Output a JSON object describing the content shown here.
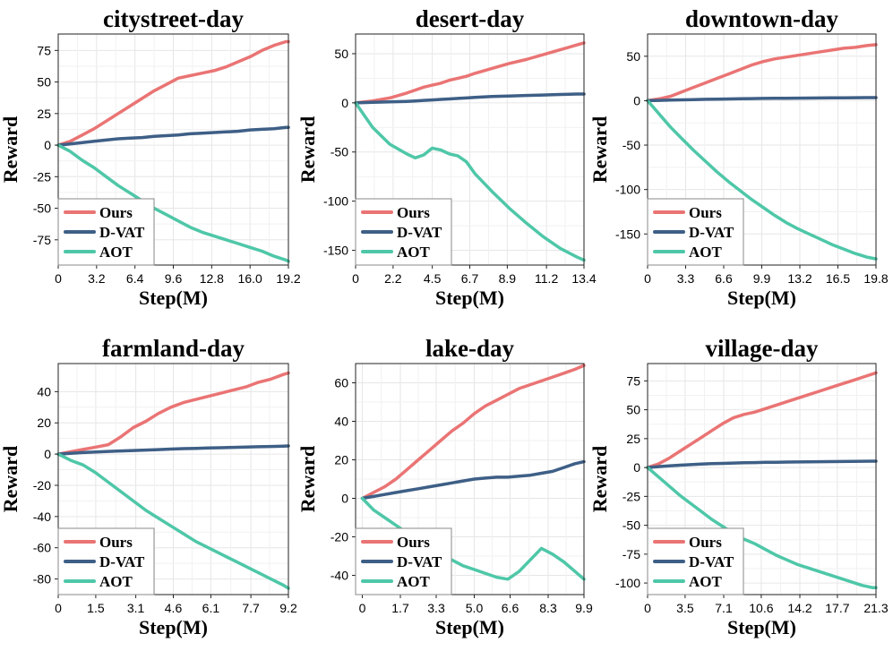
{
  "colors": {
    "ours": "#ea7474",
    "dvat": "#3e5f86",
    "aot": "#4ec7a8"
  },
  "legend": [
    "Ours",
    "D-VAT",
    "AOT"
  ],
  "chart_data": [
    {
      "type": "line",
      "title": "citystreet-day",
      "xlabel": "Step(M)",
      "ylabel": "Reward",
      "xlim": [
        0,
        19.2
      ],
      "ylim": [
        -95,
        88
      ],
      "xticks": [
        "0",
        "3.2",
        "6.4",
        "9.6",
        "12.8",
        "16.0",
        "19.2"
      ],
      "yticks": [
        "75",
        "50",
        "25",
        "0",
        "-25",
        "-50",
        "-75"
      ],
      "legend_position": "lower-left",
      "x": [
        0,
        1,
        2,
        3,
        4,
        5,
        6,
        7,
        8,
        9,
        10,
        11,
        12,
        13,
        14,
        15,
        16,
        17,
        18,
        19,
        19.2
      ],
      "series": [
        {
          "name": "Ours",
          "values": [
            0,
            3,
            8,
            13,
            19,
            25,
            31,
            37,
            43,
            48,
            53,
            55,
            57,
            59,
            62,
            66,
            70,
            75,
            79,
            82,
            82
          ]
        },
        {
          "name": "D-VAT",
          "values": [
            0,
            1,
            2,
            3,
            4,
            5,
            5.5,
            6,
            7,
            7.5,
            8,
            9,
            9.5,
            10,
            10.5,
            11,
            12,
            12.5,
            13,
            14,
            14
          ]
        },
        {
          "name": "AOT",
          "values": [
            0,
            -5,
            -12,
            -18,
            -25,
            -32,
            -38,
            -44,
            -50,
            -55,
            -60,
            -65,
            -69,
            -72,
            -75,
            -78,
            -81,
            -84,
            -88,
            -91,
            -92
          ]
        }
      ]
    },
    {
      "type": "line",
      "title": "desert-day",
      "xlabel": "Step(M)",
      "ylabel": "Reward",
      "xlim": [
        0,
        13.4
      ],
      "ylim": [
        -165,
        70
      ],
      "xticks": [
        "0",
        "2.2",
        "4.5",
        "6.7",
        "8.9",
        "11.2",
        "13.4"
      ],
      "yticks": [
        "50",
        "0",
        "-50",
        "-100",
        "-150"
      ],
      "legend_position": "lower-left",
      "x": [
        0,
        1,
        2,
        3,
        3.5,
        4,
        4.5,
        5,
        5.5,
        6,
        6.5,
        7,
        8,
        9,
        10,
        11,
        12,
        13,
        13.4
      ],
      "series": [
        {
          "name": "Ours",
          "values": [
            0,
            2,
            5,
            10,
            13,
            16,
            18,
            20,
            23,
            25,
            27,
            30,
            35,
            40,
            44,
            49,
            54,
            59,
            61
          ]
        },
        {
          "name": "D-VAT",
          "values": [
            0,
            0.5,
            1,
            1.5,
            2,
            2.5,
            3,
            3.5,
            4,
            4.5,
            5,
            5.5,
            6.5,
            7,
            7.5,
            8,
            8.5,
            9,
            9
          ]
        },
        {
          "name": "AOT",
          "values": [
            0,
            -25,
            -42,
            -52,
            -56,
            -53,
            -46,
            -48,
            -52,
            -54,
            -60,
            -72,
            -90,
            -107,
            -122,
            -136,
            -148,
            -157,
            -160
          ]
        }
      ]
    },
    {
      "type": "line",
      "title": "downtown-day",
      "xlabel": "Step(M)",
      "ylabel": "Reward",
      "xlim": [
        0,
        19.8
      ],
      "ylim": [
        -185,
        75
      ],
      "xticks": [
        "0",
        "3.3",
        "6.6",
        "9.9",
        "13.2",
        "16.5",
        "19.8"
      ],
      "yticks": [
        "50",
        "0",
        "-50",
        "-100",
        "-150"
      ],
      "legend_position": "lower-left",
      "x": [
        0,
        1,
        2,
        3,
        4,
        5,
        6,
        7,
        8,
        9,
        10,
        11,
        12,
        13,
        14,
        15,
        16,
        17,
        18,
        19,
        19.8
      ],
      "series": [
        {
          "name": "Ours",
          "values": [
            0,
            2,
            5,
            10,
            15,
            20,
            25,
            30,
            35,
            40,
            44,
            47,
            49,
            51,
            53,
            55,
            57,
            59,
            60,
            62,
            63
          ]
        },
        {
          "name": "D-VAT",
          "values": [
            0,
            0.3,
            0.6,
            0.9,
            1.2,
            1.5,
            1.7,
            1.9,
            2.1,
            2.3,
            2.5,
            2.6,
            2.7,
            2.8,
            2.9,
            3.0,
            3.1,
            3.2,
            3.3,
            3.4,
            3.4
          ]
        },
        {
          "name": "AOT",
          "values": [
            0,
            -15,
            -30,
            -43,
            -56,
            -68,
            -80,
            -91,
            -101,
            -111,
            -120,
            -129,
            -137,
            -144,
            -150,
            -156,
            -162,
            -167,
            -172,
            -176,
            -178
          ]
        }
      ]
    },
    {
      "type": "line",
      "title": "farmland-day",
      "xlabel": "Step(M)",
      "ylabel": "Reward",
      "xlim": [
        0,
        9.2
      ],
      "ylim": [
        -90,
        58
      ],
      "xticks": [
        "0",
        "1.5",
        "3.1",
        "4.6",
        "6.1",
        "7.7",
        "9.2"
      ],
      "yticks": [
        "40",
        "20",
        "0",
        "-20",
        "-40",
        "-60",
        "-80"
      ],
      "legend_position": "lower-left",
      "x": [
        0,
        0.5,
        1,
        1.5,
        2,
        2.5,
        3,
        3.5,
        4,
        4.5,
        5,
        5.5,
        6,
        6.5,
        7,
        7.5,
        8,
        8.5,
        9,
        9.2
      ],
      "series": [
        {
          "name": "Ours",
          "values": [
            0,
            1.5,
            3,
            4.5,
            6,
            11,
            17,
            21,
            26,
            30,
            33,
            35,
            37,
            39,
            41,
            43,
            46,
            48,
            51,
            52
          ]
        },
        {
          "name": "D-VAT",
          "values": [
            0,
            0.5,
            1,
            1.3,
            1.7,
            2,
            2.3,
            2.6,
            2.9,
            3.2,
            3.5,
            3.7,
            3.9,
            4.1,
            4.3,
            4.5,
            4.7,
            4.9,
            5.1,
            5.2
          ]
        },
        {
          "name": "AOT",
          "values": [
            0,
            -4,
            -7,
            -12,
            -18,
            -24,
            -30,
            -36,
            -41,
            -46,
            -51,
            -56,
            -60,
            -64,
            -68,
            -72,
            -76,
            -80,
            -84,
            -86
          ]
        }
      ]
    },
    {
      "type": "line",
      "title": "lake-day",
      "xlabel": "Step(M)",
      "ylabel": "Reward",
      "xlim": [
        -0.3,
        9.9
      ],
      "ylim": [
        -50,
        70
      ],
      "xticks": [
        "0",
        "1.7",
        "3.3",
        "5.0",
        "6.6",
        "8.3",
        "9.9"
      ],
      "yticks": [
        "60",
        "40",
        "20",
        "0",
        "-20",
        "-40"
      ],
      "legend_position": "lower-left",
      "x": [
        0,
        0.5,
        1,
        1.5,
        2,
        2.5,
        3,
        3.5,
        4,
        4.5,
        5,
        5.5,
        6,
        6.5,
        7,
        7.5,
        8,
        8.5,
        9,
        9.5,
        9.9
      ],
      "series": [
        {
          "name": "Ours",
          "values": [
            0,
            3,
            6,
            10,
            15,
            20,
            25,
            30,
            35,
            39,
            44,
            48,
            51,
            54,
            57,
            59,
            61,
            63,
            65,
            67,
            69
          ]
        },
        {
          "name": "D-VAT",
          "values": [
            0,
            1,
            2,
            3,
            4,
            5,
            6,
            7,
            8,
            9,
            10,
            10.5,
            11,
            11,
            11.5,
            12,
            13,
            14,
            16,
            18,
            19
          ]
        },
        {
          "name": "AOT",
          "values": [
            0,
            -6,
            -10,
            -14,
            -18,
            -22,
            -26,
            -29,
            -32,
            -35,
            -37,
            -39,
            -41,
            -42,
            -38,
            -32,
            -26,
            -29,
            -33,
            -38,
            -42
          ]
        }
      ]
    },
    {
      "type": "line",
      "title": "village-day",
      "xlabel": "Step(M)",
      "ylabel": "Reward",
      "xlim": [
        0,
        21.3
      ],
      "ylim": [
        -110,
        90
      ],
      "xticks": [
        "0",
        "3.5",
        "7.1",
        "10.6",
        "14.2",
        "17.7",
        "21.3"
      ],
      "yticks": [
        "75",
        "50",
        "25",
        "0",
        "-25",
        "-50",
        "-75",
        "-100"
      ],
      "legend_position": "lower-left",
      "x": [
        0,
        1,
        2,
        3,
        4,
        5,
        6,
        7,
        8,
        9,
        10,
        11,
        12,
        13,
        14,
        15,
        16,
        17,
        18,
        19,
        20,
        21,
        21.3
      ],
      "series": [
        {
          "name": "Ours",
          "values": [
            0,
            3,
            8,
            14,
            20,
            26,
            32,
            38,
            43,
            46,
            48,
            51,
            54,
            57,
            60,
            63,
            66,
            69,
            72,
            75,
            78,
            81,
            82
          ]
        },
        {
          "name": "D-VAT",
          "values": [
            0,
            0.8,
            1.5,
            2,
            2.5,
            3,
            3.3,
            3.6,
            3.9,
            4.1,
            4.3,
            4.5,
            4.6,
            4.7,
            4.8,
            4.9,
            5.0,
            5.1,
            5.2,
            5.3,
            5.4,
            5.5,
            5.5
          ]
        },
        {
          "name": "AOT",
          "values": [
            0,
            -8,
            -16,
            -24,
            -31,
            -38,
            -45,
            -51,
            -57,
            -62,
            -66,
            -71,
            -76,
            -80,
            -84,
            -87,
            -90,
            -93,
            -96,
            -99,
            -102,
            -104,
            -104
          ]
        }
      ]
    }
  ]
}
